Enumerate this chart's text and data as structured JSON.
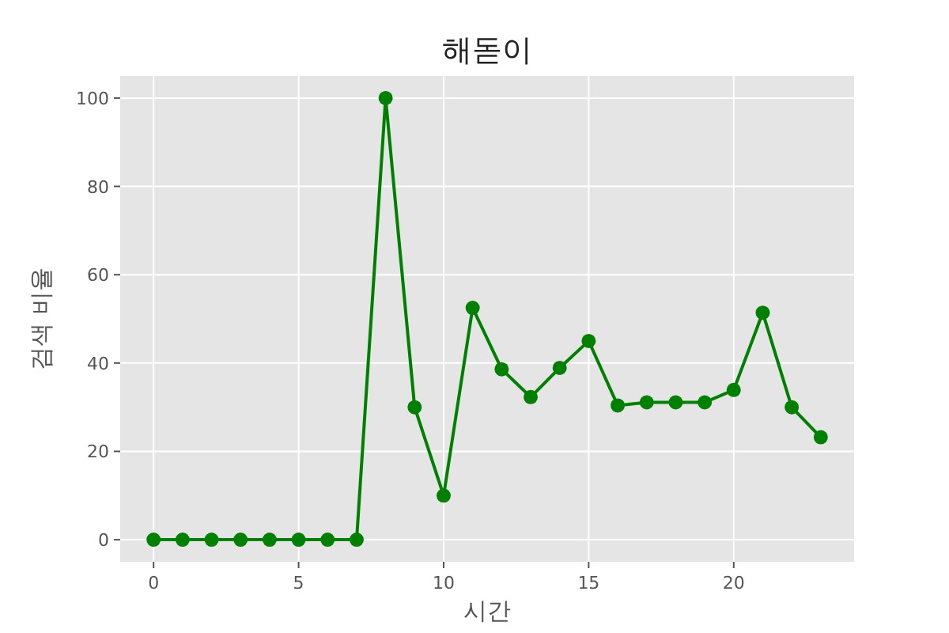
{
  "chart_data": {
    "type": "line",
    "title": "해돋이",
    "xlabel": "시간",
    "ylabel": "검색 비율",
    "x": [
      0,
      1,
      2,
      3,
      4,
      5,
      6,
      7,
      8,
      9,
      10,
      11,
      12,
      13,
      14,
      15,
      16,
      17,
      18,
      19,
      20,
      21,
      22,
      23
    ],
    "series": [
      {
        "color": "#008000",
        "values": [
          0,
          0,
          0,
          0,
          0,
          0,
          0,
          0,
          100,
          30,
          10,
          52.5,
          38.6,
          32.3,
          38.9,
          45,
          30.4,
          31.1,
          31.1,
          31.1,
          33.9,
          51.4,
          30,
          23.2
        ]
      }
    ],
    "xlim": [
      -1.15,
      24.15
    ],
    "ylim": [
      -5,
      105
    ],
    "xticks": [
      0,
      5,
      10,
      15,
      20
    ],
    "yticks": [
      0,
      20,
      40,
      60,
      80,
      100
    ],
    "grid": true,
    "marker": "circle",
    "line_style": "solid"
  }
}
